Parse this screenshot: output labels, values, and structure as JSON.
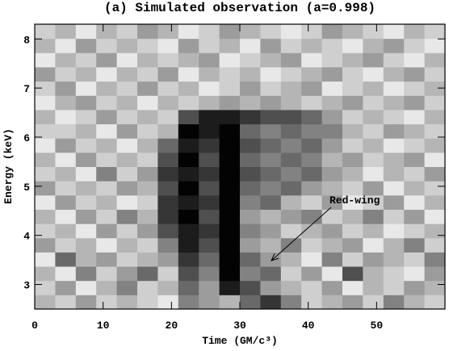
{
  "chart_data": {
    "type": "heatmap",
    "title": "(a) Simulated observation (a=0.998)",
    "x_label": "Time (GM/c³)",
    "y_label": "Energy (keV)",
    "annotation": "Red-wing",
    "xlim": [
      0,
      60
    ],
    "ylim": [
      2.5,
      8.3
    ],
    "xticks": [
      0,
      10,
      20,
      30,
      40,
      50
    ],
    "yticks": [
      3,
      4,
      5,
      6,
      7,
      8
    ],
    "z": [
      [
        2,
        1,
        3,
        1,
        2,
        1,
        0,
        4,
        3,
        2,
        5,
        7,
        4,
        1,
        2,
        3,
        1,
        4,
        2,
        1
      ],
      [
        1,
        3,
        0,
        2,
        4,
        1,
        2,
        5,
        3,
        8,
        6,
        3,
        2,
        1,
        3,
        0,
        2,
        1,
        3,
        2
      ],
      [
        2,
        0,
        4,
        1,
        3,
        5,
        1,
        6,
        4,
        9,
        4,
        5,
        1,
        3,
        0,
        6,
        2,
        1,
        0,
        3
      ],
      [
        0,
        5,
        2,
        3,
        1,
        2,
        3,
        7,
        5,
        9,
        5,
        3,
        2,
        0,
        4,
        1,
        3,
        2,
        1,
        4
      ],
      [
        3,
        1,
        2,
        0,
        2,
        1,
        4,
        8,
        6,
        9,
        3,
        2,
        4,
        1,
        2,
        3,
        0,
        2,
        4,
        1
      ],
      [
        1,
        2,
        0,
        3,
        1,
        3,
        6,
        8,
        7,
        9,
        4,
        3,
        1,
        2,
        3,
        1,
        2,
        0,
        1,
        2
      ],
      [
        2,
        0,
        3,
        1,
        4,
        2,
        7,
        9,
        6,
        9,
        3,
        2,
        3,
        4,
        1,
        2,
        4,
        1,
        3,
        0
      ],
      [
        0,
        3,
        1,
        2,
        0,
        1,
        7,
        8,
        7,
        9,
        4,
        5,
        2,
        1,
        3,
        0,
        1,
        3,
        0,
        2
      ],
      [
        3,
        1,
        2,
        1,
        3,
        2,
        6,
        9,
        6,
        9,
        5,
        4,
        5,
        3,
        2,
        1,
        3,
        0,
        2,
        1
      ],
      [
        1,
        2,
        0,
        4,
        1,
        3,
        7,
        8,
        7,
        9,
        6,
        5,
        4,
        5,
        3,
        2,
        0,
        2,
        1,
        3
      ],
      [
        2,
        0,
        3,
        1,
        2,
        1,
        6,
        9,
        6,
        9,
        5,
        4,
        5,
        4,
        2,
        3,
        1,
        2,
        3,
        0
      ],
      [
        0,
        3,
        1,
        2,
        0,
        2,
        5,
        8,
        7,
        9,
        6,
        5,
        4,
        5,
        3,
        1,
        2,
        0,
        1,
        2
      ],
      [
        1,
        1,
        2,
        0,
        3,
        1,
        2,
        9,
        8,
        9,
        5,
        4,
        5,
        4,
        4,
        2,
        1,
        3,
        2,
        1
      ],
      [
        2,
        0,
        1,
        3,
        1,
        2,
        1,
        6,
        8,
        8,
        7,
        6,
        6,
        5,
        3,
        1,
        2,
        1,
        0,
        2
      ],
      [
        0,
        2,
        3,
        1,
        2,
        0,
        2,
        1,
        2,
        3,
        2,
        3,
        2,
        1,
        2,
        3,
        1,
        2,
        3,
        1
      ],
      [
        1,
        3,
        0,
        2,
        1,
        3,
        1,
        2,
        0,
        1,
        3,
        1,
        2,
        3,
        0,
        1,
        2,
        0,
        1,
        2
      ],
      [
        3,
        1,
        2,
        0,
        2,
        1,
        3,
        0,
        2,
        1,
        2,
        0,
        1,
        2,
        3,
        1,
        0,
        2,
        3,
        1
      ],
      [
        0,
        2,
        1,
        3,
        0,
        2,
        1,
        2,
        3,
        0,
        1,
        2,
        3,
        0,
        1,
        2,
        3,
        1,
        0,
        2
      ],
      [
        2,
        0,
        3,
        1,
        2,
        1,
        0,
        3,
        1,
        2,
        0,
        3,
        1,
        2,
        1,
        0,
        2,
        3,
        1,
        0
      ],
      [
        1,
        2,
        0,
        2,
        1,
        3,
        2,
        0,
        1,
        3,
        2,
        1,
        0,
        1,
        3,
        2,
        1,
        0,
        2,
        1
      ]
    ]
  }
}
